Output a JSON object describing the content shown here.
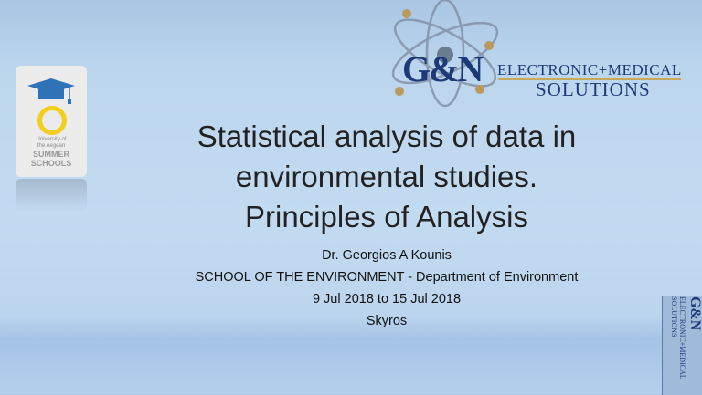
{
  "university_logo": {
    "line1": "University of",
    "line2": "the Aegean",
    "line3": "SUMMER",
    "line4": "SCHOOLS"
  },
  "company_logo": {
    "monogram": "G&N",
    "line1": "ELECTRONIC+MEDICAL",
    "line2": "SOLUTIONS"
  },
  "slide": {
    "title_lines": [
      "Statistical analysis of data in",
      "environmental studies.",
      "Principles of Analysis"
    ],
    "author": "Dr. Georgios A Kounis",
    "affiliation": "SCHOOL OF THE ENVIRONMENT - Department of Environment",
    "dates": "9 Jul 2018 to 15 Jul 2018",
    "location": "Skyros"
  },
  "colors": {
    "brand_navy": "#1c3a78",
    "gold": "#c8a85a",
    "cap_blue": "#2f72b8",
    "ring_yellow": "#f2cf1d"
  }
}
